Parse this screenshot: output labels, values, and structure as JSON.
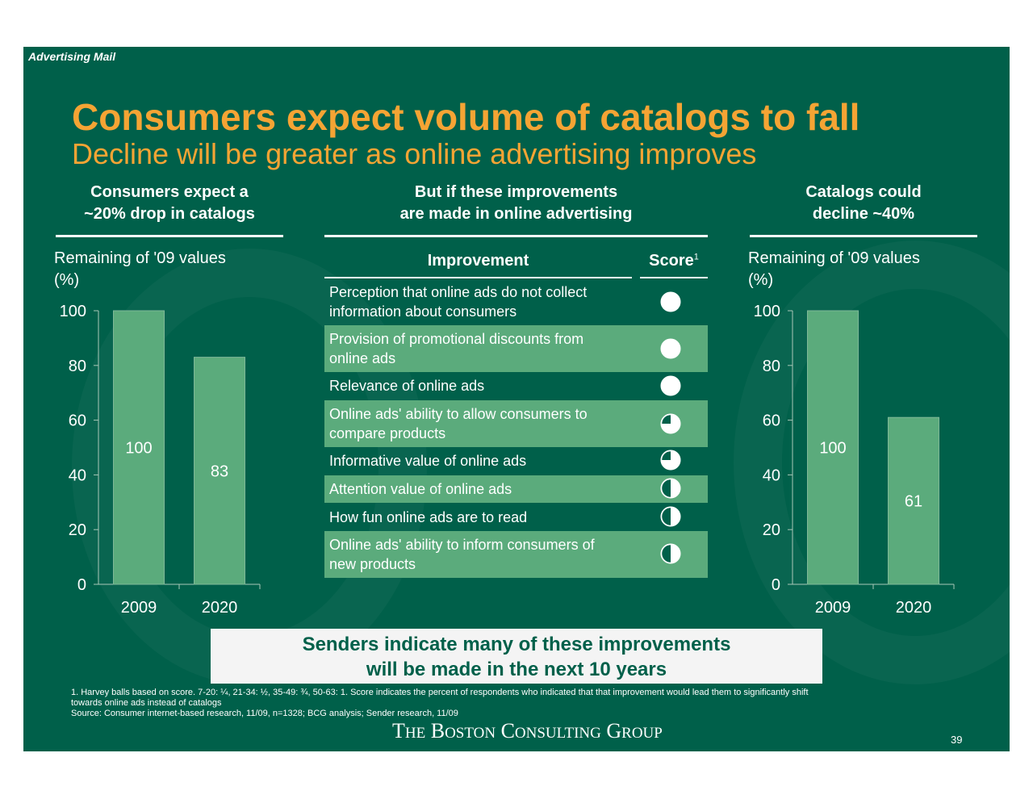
{
  "section_label": "Advertising Mail",
  "title": "Consumers expect volume of catalogs to fall",
  "subtitle": "Decline will be greater as online advertising improves",
  "left": {
    "heading_line1": "Consumers expect a",
    "heading_line2": "~20% drop in catalogs",
    "unit_line1": "Remaining of '09 values",
    "unit_line2": "(%)"
  },
  "middle": {
    "heading_line1": "But if these improvements",
    "heading_line2": "are made in online advertising",
    "col_improvement": "Improvement",
    "col_score": "Score",
    "col_score_sup": "1",
    "rows": [
      {
        "line1": "Perception that online ads do not collect",
        "line2": "information about consumers",
        "score": 1.0
      },
      {
        "line1": "Provision of promotional discounts from",
        "line2": "online ads",
        "score": 1.0
      },
      {
        "line1": "Relevance of online ads",
        "line2": "",
        "score": 1.0
      },
      {
        "line1": "Online ads' ability to allow consumers to",
        "line2": "compare products",
        "score": 0.75
      },
      {
        "line1": "Informative value of online ads",
        "line2": "",
        "score": 0.75
      },
      {
        "line1": "Attention value of online ads",
        "line2": "",
        "score": 0.5
      },
      {
        "line1": "How fun online ads are to read",
        "line2": "",
        "score": 0.5
      },
      {
        "line1": "Online ads' ability to inform consumers of",
        "line2": "new products",
        "score": 0.5
      }
    ]
  },
  "right": {
    "heading_line1": "Catalogs could",
    "heading_line2": "decline ~40%",
    "unit_line1": "Remaining of '09 values",
    "unit_line2": "(%)"
  },
  "chart_data": [
    {
      "type": "bar",
      "categories": [
        "2009",
        "2020"
      ],
      "values": [
        100,
        83
      ],
      "ylabel": "Remaining of '09 values (%)",
      "ylim": [
        0,
        100
      ],
      "yticks": [
        0,
        20,
        40,
        60,
        80,
        100
      ],
      "bar_color": "#5bab7c"
    },
    {
      "type": "bar",
      "categories": [
        "2009",
        "2020"
      ],
      "values": [
        100,
        61
      ],
      "ylabel": "Remaining of '09 values (%)",
      "ylim": [
        0,
        100
      ],
      "yticks": [
        0,
        20,
        40,
        60,
        80,
        100
      ],
      "bar_color": "#5bab7c"
    }
  ],
  "callout_line1": "Senders indicate many of these improvements",
  "callout_line2": "will be made in the next 10 years",
  "footnote_line1": "1. Harvey balls based on score. 7-20: ¼, 21-34: ½, 35-49: ¾, 50-63: 1. Score indicates the percent of respondents who indicated that that improvement would lead them to significantly shift",
  "footnote_line2": "towards online ads instead of catalogs",
  "footnote_line3": "Source: Consumer internet-based research, 11/09, n=1328; BCG analysis; Sender research, 11/09",
  "logo": {
    "the_T": "T",
    "the_rest": "HE",
    "boston_B": "B",
    "boston_rest": "OSTON",
    "consulting_C": "C",
    "consulting_rest": "ONSULTING",
    "group_G": "G",
    "group_rest": "ROUP"
  },
  "page_number": "39",
  "colors": {
    "background": "#00604a",
    "accent": "#f5a434",
    "bar": "#5bab7c",
    "callout_bg": "#f4f4f4"
  }
}
